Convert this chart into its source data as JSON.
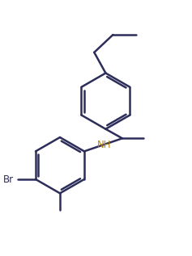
{
  "background_color": "#ffffff",
  "line_color": "#2d2d5a",
  "nh_color": "#b8860b",
  "br_color": "#2d2d5a",
  "line_width": 1.8,
  "figsize": [
    2.37,
    3.17
  ],
  "dpi": 100
}
